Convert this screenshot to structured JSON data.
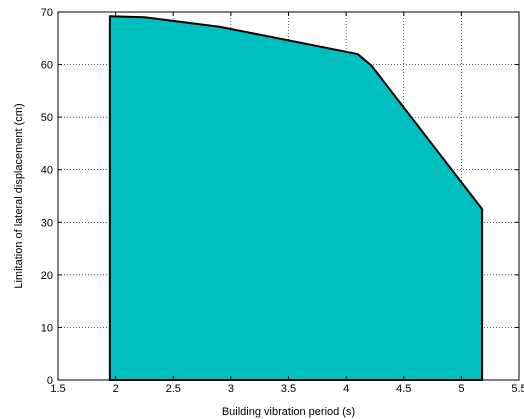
{
  "chart_data": {
    "type": "area",
    "title": "",
    "xlabel": "Building vibration period (s)",
    "ylabel": "Limitation of lateral displacement (cm)",
    "xlim": [
      1.5,
      5.5
    ],
    "ylim": [
      0,
      70
    ],
    "xticks": [
      1.5,
      2,
      2.5,
      3,
      3.5,
      4,
      4.5,
      5,
      5.5
    ],
    "yticks": [
      0,
      10,
      20,
      30,
      40,
      50,
      60,
      70
    ],
    "xtick_labels": [
      "1.5",
      "2",
      "2.5",
      "3",
      "3.5",
      "4",
      "4.5",
      "5",
      "5.5"
    ],
    "ytick_labels": [
      "0",
      "10",
      "20",
      "30",
      "40",
      "50",
      "60",
      "70"
    ],
    "grid": true,
    "series": [
      {
        "x": [
          1.95,
          1.95,
          2.25,
          2.9,
          4.1,
          4.22,
          5.18,
          5.18
        ],
        "y": [
          0,
          69.2,
          69.0,
          67.2,
          62.0,
          59.8,
          32.5,
          0
        ]
      }
    ],
    "fill_color": "#00BFBF",
    "edge_color": "#000000",
    "grid_color": "#000000",
    "frame_color": "#000000"
  }
}
